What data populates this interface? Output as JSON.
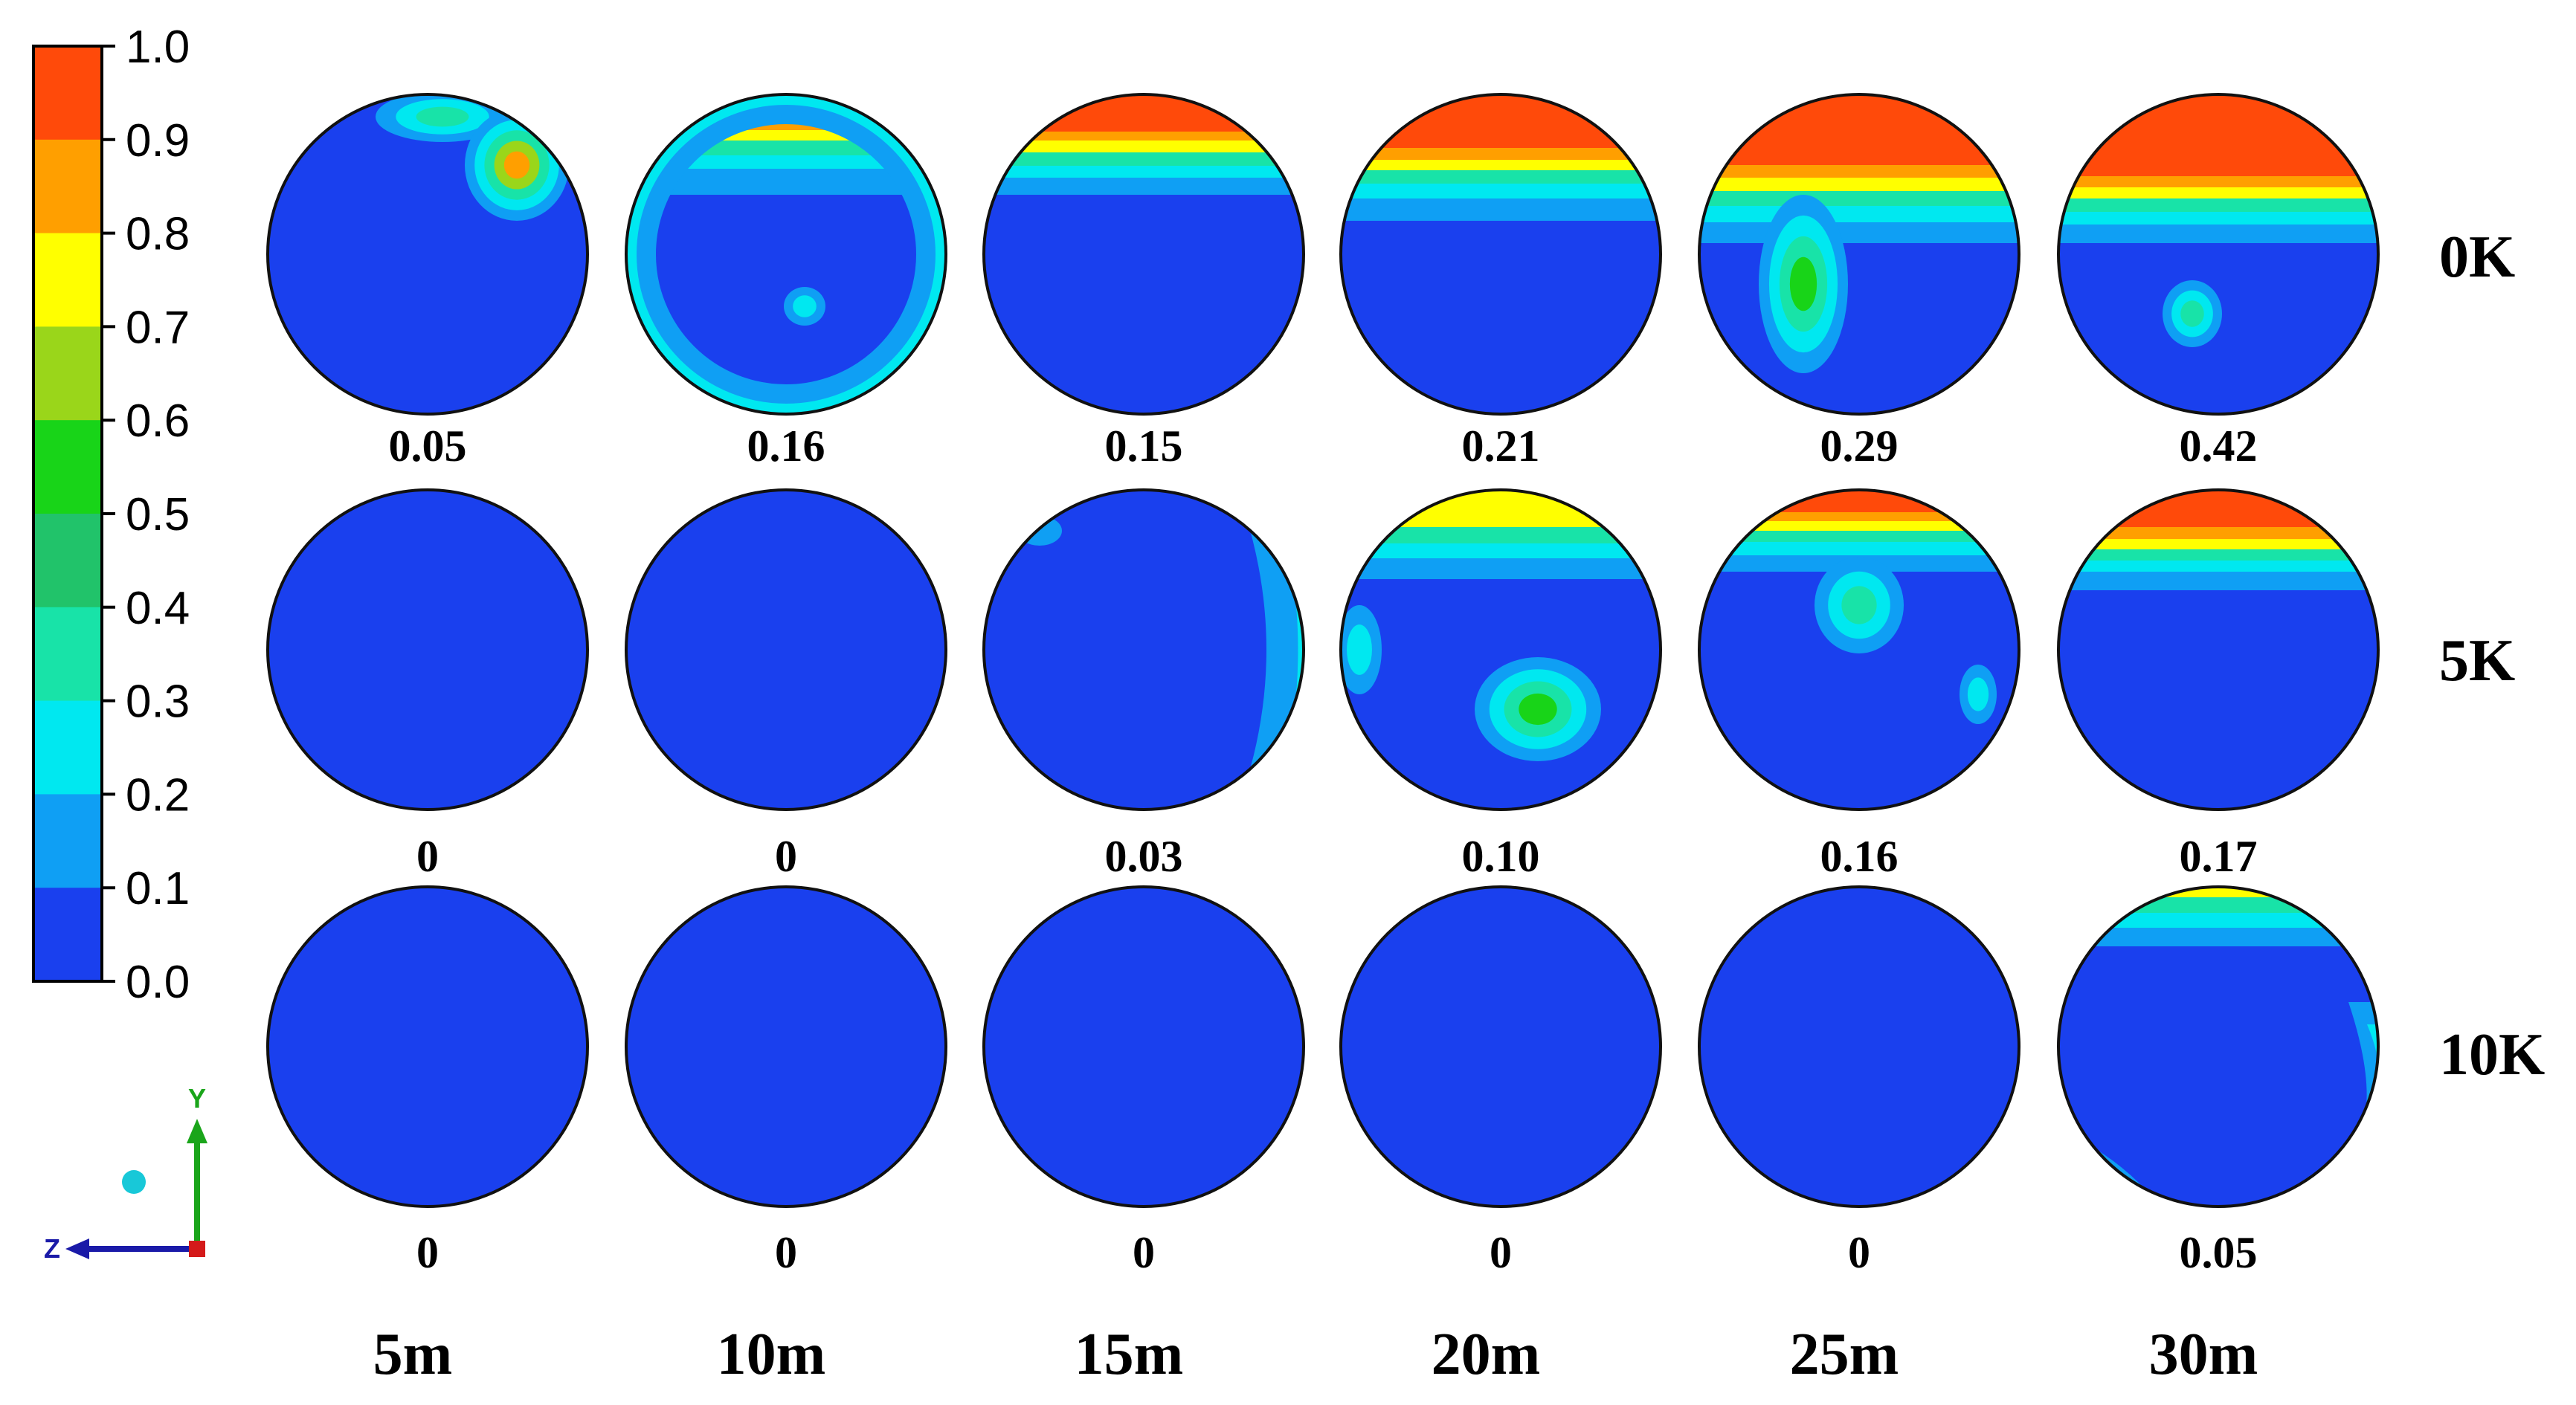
{
  "colorbar": {
    "ticks": [
      "1.0",
      "0.9",
      "0.8",
      "0.7",
      "0.6",
      "0.5",
      "0.4",
      "0.3",
      "0.2",
      "0.1",
      "0.0"
    ],
    "colors": [
      "#ff4a0a",
      "#ff9f00",
      "#ffff00",
      "#9ad61a",
      "#18d418",
      "#21c36a",
      "#18e3a8",
      "#00e8f0",
      "#0f9ff4",
      "#1a40ee"
    ]
  },
  "columns": [
    "5m",
    "10m",
    "15m",
    "20m",
    "25m",
    "30m"
  ],
  "rows": [
    {
      "label": "0K",
      "values": [
        "0.05",
        "0.16",
        "0.15",
        "0.21",
        "0.29",
        "0.42"
      ]
    },
    {
      "label": "5K",
      "values": [
        "0",
        "0",
        "0.03",
        "0.10",
        "0.16",
        "0.17"
      ]
    },
    {
      "label": "10K",
      "values": [
        "0",
        "0",
        "0",
        "0",
        "0",
        "0.05"
      ]
    }
  ],
  "axes_triad": {
    "vertical": "Y",
    "horizontal": "Z"
  }
}
